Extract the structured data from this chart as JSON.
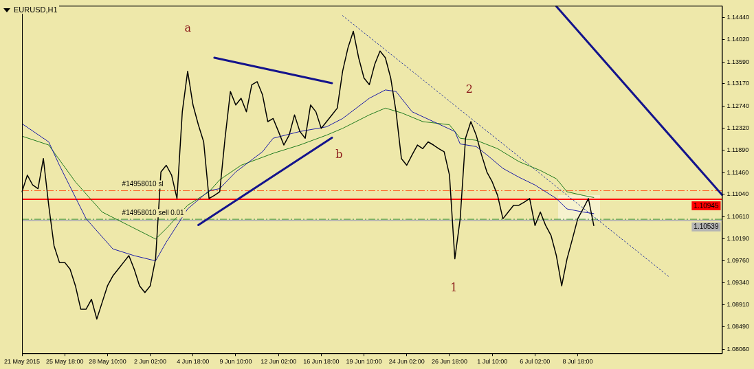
{
  "chart_data": {
    "type": "line",
    "title": "EURUSD,H1",
    "categories": [
      "21 May 2015",
      null,
      null,
      null,
      null,
      null,
      null,
      null,
      "25 May 18:00",
      null,
      null,
      null,
      null,
      null,
      null,
      null,
      "28 May 10:00",
      null,
      null,
      null,
      null,
      null,
      null,
      null,
      "2 Jun 02:00",
      null,
      null,
      null,
      null,
      null,
      null,
      null,
      "4 Jun 18:00",
      null,
      null,
      null,
      null,
      null,
      null,
      null,
      "9 Jun 10:00",
      null,
      null,
      null,
      null,
      null,
      null,
      null,
      "12 Jun 02:00",
      null,
      null,
      null,
      null,
      null,
      null,
      null,
      "16 Jun 18:00",
      null,
      null,
      null,
      null,
      null,
      null,
      null,
      "19 Jun 10:00",
      null,
      null,
      null,
      null,
      null,
      null,
      null,
      "24 Jun 02:00",
      null,
      null,
      null,
      null,
      null,
      null,
      null,
      "26 Jun 18:00",
      null,
      null,
      null,
      null,
      null,
      null,
      null,
      "1 Jul 10:00",
      null,
      null,
      null,
      null,
      null,
      null,
      null,
      "6 Jul 02:00",
      null,
      null,
      null,
      null,
      null,
      null,
      null,
      "8 Jul 18:00",
      null,
      null,
      null,
      null,
      null,
      null,
      null,
      null,
      null,
      null,
      null,
      null,
      null,
      null,
      null,
      null,
      null,
      null,
      null,
      null,
      null,
      null,
      null,
      null,
      null,
      null,
      null
    ],
    "series": [
      {
        "color": "#000000",
        "values": [
          1.1109,
          1.1141,
          1.1122,
          1.1115,
          1.1173,
          1.1083,
          1.1005,
          1.0973,
          1.0973,
          1.096,
          1.0928,
          1.0883,
          1.0883,
          1.0902,
          1.0864,
          1.0896,
          1.0928,
          1.0947,
          1.096,
          1.0973,
          1.0986,
          1.096,
          1.0928,
          1.0915,
          1.0928,
          1.098,
          1.1147,
          1.116,
          1.1141,
          1.1096,
          1.1263,
          1.1341,
          1.1276,
          1.1238,
          1.1205,
          1.1096,
          1.1102,
          1.1109,
          1.1212,
          1.1302,
          1.1276,
          1.1289,
          1.1263,
          1.1315,
          1.1321,
          1.1296,
          1.1244,
          1.125,
          1.1225,
          1.1199,
          1.1218,
          1.1257,
          1.1225,
          1.1212,
          1.1276,
          1.1263,
          1.1231,
          1.1244,
          1.1257,
          1.127,
          1.1341,
          1.1386,
          1.1418,
          1.1367,
          1.1328,
          1.1315,
          1.1354,
          1.138,
          1.1367,
          1.1328,
          1.1263,
          1.1173,
          1.116,
          1.118,
          1.1199,
          1.1192,
          1.1205,
          1.1199,
          1.1192,
          1.1186,
          1.1141,
          1.098,
          1.1057,
          1.1212,
          1.1244,
          1.1218,
          1.118,
          1.1147,
          1.1128,
          1.1102,
          1.1057,
          1.107,
          1.1083,
          1.1083,
          1.1089,
          1.1096,
          1.1044,
          1.107,
          1.1044,
          1.1025,
          1.0986,
          1.0928,
          1.098,
          1.1018,
          1.1057,
          1.1076,
          1.1096,
          1.1044,
          null,
          null,
          null,
          null,
          null,
          null,
          null,
          null,
          null,
          null,
          null,
          null,
          null,
          null,
          null,
          null,
          null,
          null,
          null,
          null,
          null,
          null,
          null,
          null
        ]
      },
      {
        "color": "#1a1aa8",
        "values": [
          1.124,
          null,
          null,
          null,
          null,
          1.1205,
          null,
          1.116,
          null,
          null,
          null,
          null,
          1.1057,
          null,
          null,
          null,
          null,
          1.0999,
          null,
          null,
          null,
          1.0986,
          null,
          null,
          null,
          1.0976,
          null,
          1.1012,
          null,
          null,
          null,
          1.1076,
          null,
          null,
          null,
          1.1111,
          null,
          1.1115,
          null,
          null,
          1.1147,
          null,
          null,
          null,
          null,
          1.1186,
          null,
          1.1212,
          null,
          null,
          null,
          null,
          1.1225,
          null,
          null,
          null,
          null,
          1.1234,
          null,
          null,
          1.125,
          null,
          null,
          null,
          null,
          1.1289,
          null,
          null,
          1.1305,
          null,
          1.1302,
          null,
          null,
          1.1263,
          null,
          null,
          null,
          1.1244,
          null,
          null,
          null,
          1.1225,
          1.1201,
          null,
          null,
          1.1196,
          null,
          1.118,
          null,
          null,
          1.1154,
          null,
          null,
          1.1137,
          null,
          null,
          1.1122,
          null,
          null,
          null,
          1.1096,
          null,
          1.1076,
          null,
          null,
          1.107,
          null,
          1.1067,
          null,
          null,
          null,
          null,
          null,
          null,
          null,
          null,
          null,
          null,
          null,
          null,
          null,
          null,
          null,
          null,
          null,
          null,
          null,
          null,
          null,
          null,
          null,
          null
        ]
      },
      {
        "color": "#1f7a1f",
        "values": [
          1.1216,
          null,
          null,
          null,
          null,
          1.1199,
          null,
          null,
          null,
          null,
          1.1128,
          null,
          null,
          null,
          null,
          1.107,
          null,
          null,
          null,
          null,
          1.1044,
          null,
          null,
          null,
          null,
          1.1018,
          null,
          1.1038,
          null,
          null,
          null,
          1.1083,
          null,
          null,
          null,
          1.1109,
          null,
          1.1132,
          null,
          null,
          null,
          1.116,
          null,
          null,
          null,
          null,
          null,
          1.1183,
          null,
          null,
          null,
          null,
          1.1199,
          null,
          null,
          null,
          null,
          1.1218,
          null,
          null,
          1.1231,
          null,
          null,
          null,
          null,
          1.1257,
          null,
          null,
          1.127,
          null,
          null,
          1.1261,
          null,
          null,
          null,
          1.1244,
          null,
          null,
          null,
          null,
          1.1238,
          null,
          1.1212,
          null,
          null,
          1.1208,
          null,
          null,
          null,
          1.1192,
          null,
          null,
          null,
          1.1167,
          null,
          null,
          null,
          1.115,
          null,
          null,
          1.1134,
          null,
          1.1109,
          null,
          null,
          1.1102,
          null,
          1.1098,
          null,
          null,
          null,
          null,
          null,
          null,
          null,
          null,
          null,
          null,
          null,
          null,
          null,
          null,
          null,
          null,
          null,
          null,
          null,
          null,
          null,
          null,
          null,
          null
        ]
      },
      {
        "color": "#14148c",
        "values": [
          null,
          null,
          null,
          null,
          null,
          null,
          null,
          null,
          null,
          null,
          null,
          null,
          null,
          null,
          null,
          null,
          null,
          null,
          null,
          null,
          null,
          null,
          null,
          null,
          null,
          null,
          null,
          null,
          null,
          null,
          null,
          null,
          null,
          null,
          null,
          null,
          1.1367,
          null,
          null,
          null,
          null,
          null,
          null,
          null,
          null,
          null,
          null,
          null,
          null,
          null,
          null,
          null,
          null,
          null,
          null,
          null,
          null,
          null,
          1.1318,
          null,
          null,
          null,
          null,
          null,
          null,
          null,
          null,
          null,
          null,
          null,
          null,
          null,
          null,
          null,
          null,
          null,
          null,
          null,
          null,
          null,
          null,
          null,
          null,
          null,
          null,
          null,
          null,
          null,
          null,
          null,
          null,
          null,
          null,
          null,
          null,
          null,
          null,
          null,
          null,
          null,
          null,
          null,
          null,
          null,
          null,
          null,
          null,
          null,
          null,
          null,
          null,
          null,
          null,
          null,
          null,
          null,
          null,
          null,
          null,
          null,
          null,
          null,
          null,
          null,
          null,
          null,
          null,
          null,
          null,
          null,
          null,
          null
        ]
      },
      {
        "color": "#14148c",
        "values": [
          null,
          null,
          null,
          null,
          null,
          null,
          null,
          null,
          null,
          null,
          null,
          null,
          null,
          null,
          null,
          null,
          null,
          null,
          null,
          null,
          null,
          null,
          null,
          null,
          null,
          null,
          null,
          null,
          null,
          null,
          null,
          null,
          null,
          1.1045,
          null,
          null,
          null,
          null,
          null,
          null,
          null,
          null,
          null,
          null,
          null,
          null,
          null,
          null,
          null,
          null,
          null,
          null,
          null,
          null,
          null,
          null,
          null,
          null,
          1.1213,
          null,
          null,
          null,
          null,
          null,
          null,
          null,
          null,
          null,
          null,
          null,
          null,
          null,
          null,
          null,
          null,
          null,
          null,
          null,
          null,
          null,
          null,
          null,
          null,
          null,
          null,
          null,
          null,
          null,
          null,
          null,
          null,
          null,
          null,
          null,
          null,
          null,
          null,
          null,
          null,
          null,
          null,
          null,
          null,
          null,
          null,
          null,
          null,
          null,
          null,
          null,
          null,
          null,
          null,
          null,
          null,
          null,
          null,
          null,
          null,
          null,
          null,
          null,
          null,
          null,
          null,
          null,
          null,
          null,
          null,
          null,
          null,
          null
        ]
      },
      {
        "color": "#14148c",
        "values": [
          null,
          null,
          null,
          null,
          null,
          null,
          null,
          null,
          null,
          null,
          null,
          null,
          null,
          null,
          null,
          null,
          null,
          null,
          null,
          null,
          null,
          null,
          null,
          null,
          null,
          null,
          null,
          null,
          null,
          null,
          null,
          null,
          null,
          null,
          null,
          null,
          null,
          null,
          null,
          null,
          null,
          null,
          null,
          null,
          null,
          null,
          null,
          null,
          null,
          null,
          null,
          null,
          null,
          null,
          null,
          null,
          null,
          null,
          null,
          null,
          null,
          null,
          null,
          null,
          null,
          null,
          null,
          null,
          null,
          null,
          null,
          null,
          null,
          null,
          null,
          null,
          null,
          null,
          null,
          null,
          null,
          null,
          null,
          null,
          null,
          null,
          null,
          null,
          null,
          null,
          null,
          null,
          null,
          null,
          null,
          null,
          null,
          null,
          null,
          null,
          1.1466,
          null,
          null,
          null,
          null,
          null,
          null,
          null,
          null,
          null,
          null,
          null,
          null,
          null,
          null,
          null,
          null,
          null,
          null,
          null,
          null,
          null,
          null,
          null,
          null,
          null,
          null,
          null,
          null,
          null,
          null,
          1.1103
        ]
      },
      {
        "color": "#2a3aa0",
        "line_style": "dotted",
        "values": [
          null,
          null,
          null,
          null,
          null,
          null,
          null,
          null,
          null,
          null,
          null,
          null,
          null,
          null,
          null,
          null,
          null,
          null,
          null,
          null,
          null,
          null,
          null,
          null,
          null,
          null,
          null,
          null,
          null,
          null,
          null,
          null,
          null,
          null,
          null,
          null,
          null,
          null,
          null,
          null,
          null,
          null,
          null,
          null,
          null,
          null,
          null,
          null,
          null,
          null,
          null,
          null,
          null,
          null,
          null,
          null,
          null,
          null,
          null,
          null,
          1.1448,
          null,
          null,
          null,
          null,
          null,
          null,
          null,
          null,
          null,
          null,
          null,
          null,
          null,
          null,
          null,
          null,
          null,
          null,
          null,
          null,
          null,
          null,
          null,
          null,
          null,
          null,
          null,
          null,
          null,
          null,
          null,
          null,
          null,
          null,
          null,
          null,
          null,
          null,
          null,
          null,
          null,
          null,
          null,
          null,
          null,
          null,
          null,
          null,
          null,
          null,
          null,
          null,
          null,
          null,
          null,
          null,
          null,
          null,
          null,
          null,
          1.0946,
          null,
          null,
          null,
          null,
          null,
          null,
          null,
          null,
          null,
          null
        ]
      }
    ],
    "ylim": [
      1.0798,
      1.1467
    ],
    "yticks": [
      {
        "value": 1.0806,
        "label": "1.08060"
      },
      {
        "value": 1.0849,
        "label": "1.08490"
      },
      {
        "value": 1.0891,
        "label": "1.08910"
      },
      {
        "value": 1.0934,
        "label": "1.09340"
      },
      {
        "value": 1.0976,
        "label": "1.09760"
      },
      {
        "value": 1.1019,
        "label": "1.10190"
      },
      {
        "value": 1.1061,
        "label": "1.10610"
      },
      {
        "value": 1.1104,
        "label": "1.11040"
      },
      {
        "value": 1.1146,
        "label": "1.11460"
      },
      {
        "value": 1.1189,
        "label": "1.11890"
      },
      {
        "value": 1.1232,
        "label": "1.12320"
      },
      {
        "value": 1.1274,
        "label": "1.12740"
      },
      {
        "value": 1.1317,
        "label": "1.13170"
      },
      {
        "value": 1.1359,
        "label": "1.13590"
      },
      {
        "value": 1.1402,
        "label": "1.14020"
      },
      {
        "value": 1.1444,
        "label": "1.14440"
      }
    ],
    "ref_lines": [
      {
        "axis": "y",
        "value": 1.1111,
        "label": "#14958010 sl",
        "color": "#ff5a1e",
        "line_style": "dashed"
      },
      {
        "axis": "y",
        "value": 1.10945,
        "label": "1.10945",
        "color": "#ff0000"
      },
      {
        "axis": "y",
        "value": 1.1056,
        "label": "#14958010 sell 0.01",
        "color": "#1a8a1a",
        "line_style": "dashed"
      },
      {
        "axis": "y",
        "value": 1.10539,
        "label": "1.10539",
        "color": "#b4b4b4"
      }
    ],
    "annotations": [
      "a",
      "b",
      "1",
      "2"
    ]
  }
}
